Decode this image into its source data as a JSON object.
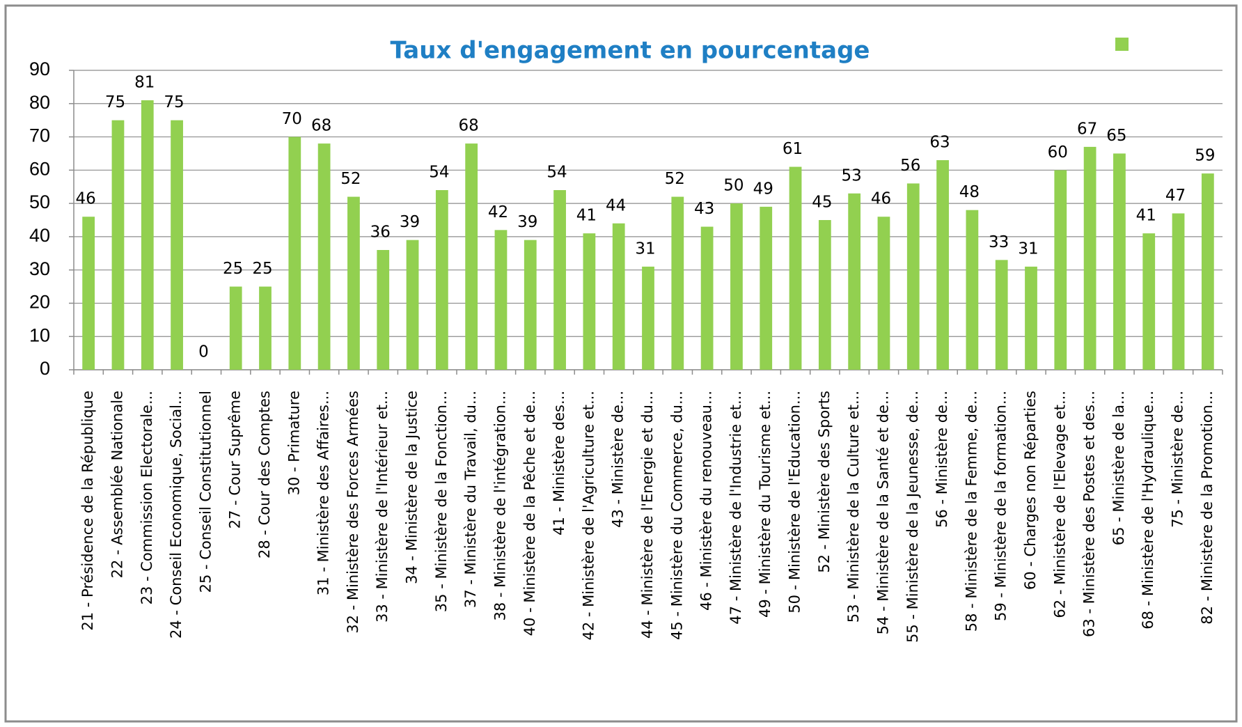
{
  "chart_data": {
    "type": "bar",
    "title": "Taux d'engagement en pourcentage",
    "categories": [
      "21 - Présidence de la République",
      "22 - Assemblée Nationale",
      "23 - Commission Electorale...",
      "24 - Conseil Economique, Social...",
      "25 - Conseil Constitutionnel",
      "27 - Cour  Suprême",
      "28 - Cour des Comptes",
      "30 - Primature",
      "31 - Ministère des Affaires...",
      "32 - Ministère des Forces Armées",
      "33 - Ministère de l'Intérieur et...",
      "34 - Ministère de la Justice",
      "35 - Ministère de la Fonction...",
      "37 - Ministère du Travail, du...",
      "38 - Ministère de l'intégration...",
      "40 - Ministère de la Pêche et de...",
      "41 - Ministère des...",
      "42 - Ministère de l'Agriculture et...",
      "43 - Ministère de...",
      "44 - Ministère de l'Energie et du...",
      "45 - Ministère du Commerce, du...",
      "46 - Ministère du renouveau...",
      "47 - Ministère de l'Industrie et...",
      "49 - Ministère du Tourisme et...",
      "50 - Ministère de l'Education...",
      "52 - Ministère des Sports",
      "53 - Ministère de la Culture et...",
      "54 - Ministère de la Santé et de...",
      "55 - Ministère de la Jeunesse, de...",
      "56 - Ministère de...",
      "58 - Ministère de la Femme, de...",
      "59 - Ministère de la formation...",
      "60 - Charges non Réparties",
      "62 - Ministère de l'Elevage et...",
      "63 - Ministère des Postes et des...",
      "65 - Ministère de la...",
      "68 - Ministère de l'Hydraulique...",
      "75 - Ministère de...",
      "82 - Ministère de la Promotion..."
    ],
    "values": [
      46,
      75,
      81,
      75,
      0,
      25,
      25,
      70,
      68,
      52,
      36,
      39,
      54,
      68,
      42,
      39,
      54,
      41,
      44,
      31,
      52,
      43,
      50,
      49,
      61,
      45,
      53,
      46,
      56,
      63,
      48,
      33,
      31,
      60,
      67,
      65,
      41,
      47,
      59
    ],
    "color": "#92d050",
    "ylim": [
      0,
      90
    ],
    "yticks": [
      0,
      10,
      20,
      30,
      40,
      50,
      60,
      70,
      80,
      90
    ],
    "grid": true,
    "legend": "top-right"
  }
}
